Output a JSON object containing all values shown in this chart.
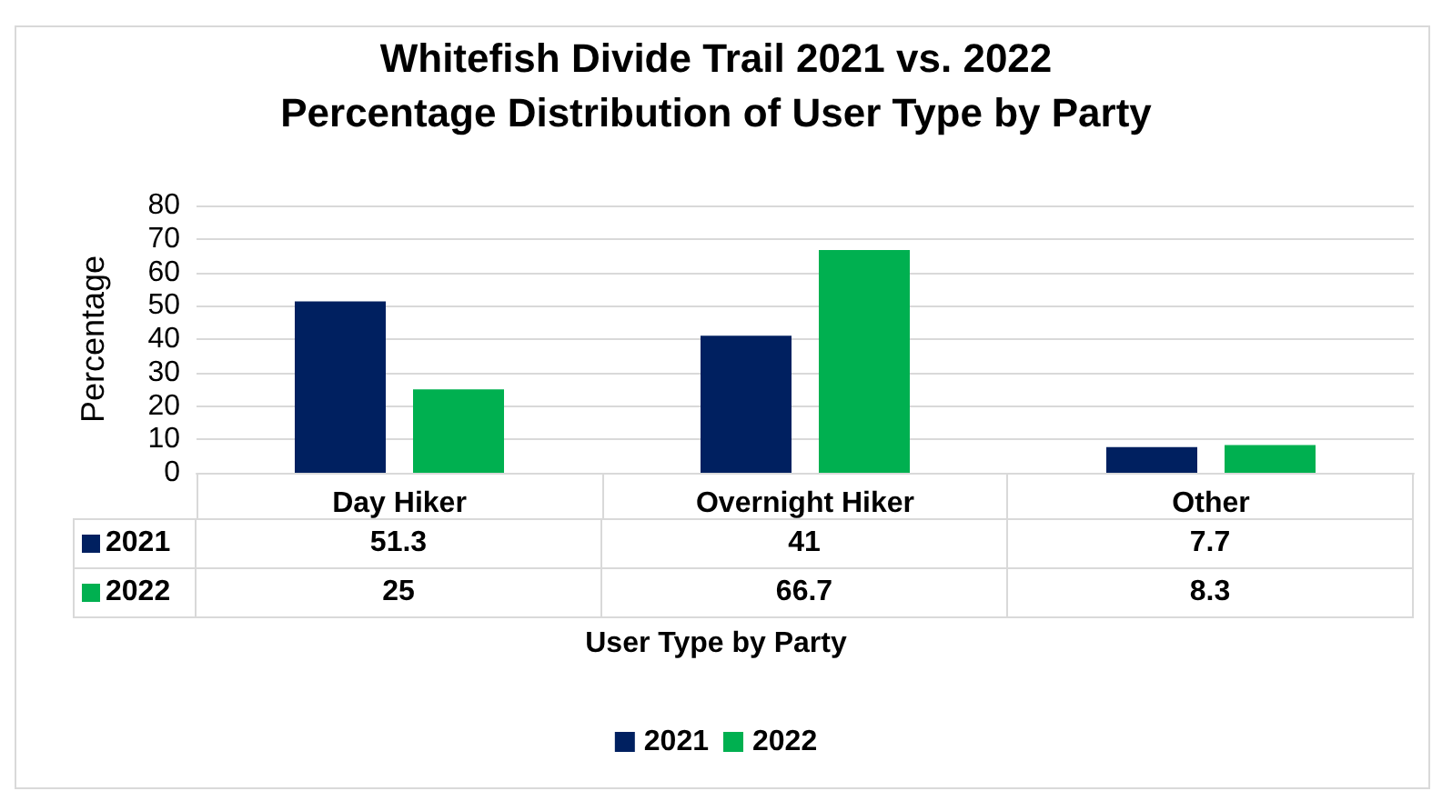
{
  "chart_data": {
    "type": "bar",
    "title": "Whitefish Divide Trail 2021 vs. 2022\nPercentage Distribution of User Type by Party",
    "xlabel": "User Type by Party",
    "ylabel": "Percentage",
    "categories": [
      "Day Hiker",
      "Overnight Hiker",
      "Other"
    ],
    "series": [
      {
        "name": "2021",
        "color": "#002060",
        "values": [
          51.3,
          41,
          7.7
        ]
      },
      {
        "name": "2022",
        "color": "#00b050",
        "values": [
          25,
          66.7,
          8.3
        ]
      }
    ],
    "ylim": [
      0,
      80
    ],
    "yticks": [
      0,
      10,
      20,
      30,
      40,
      50,
      60,
      70,
      80
    ],
    "grid": "y",
    "legend": "bottom",
    "data_labels": true
  }
}
